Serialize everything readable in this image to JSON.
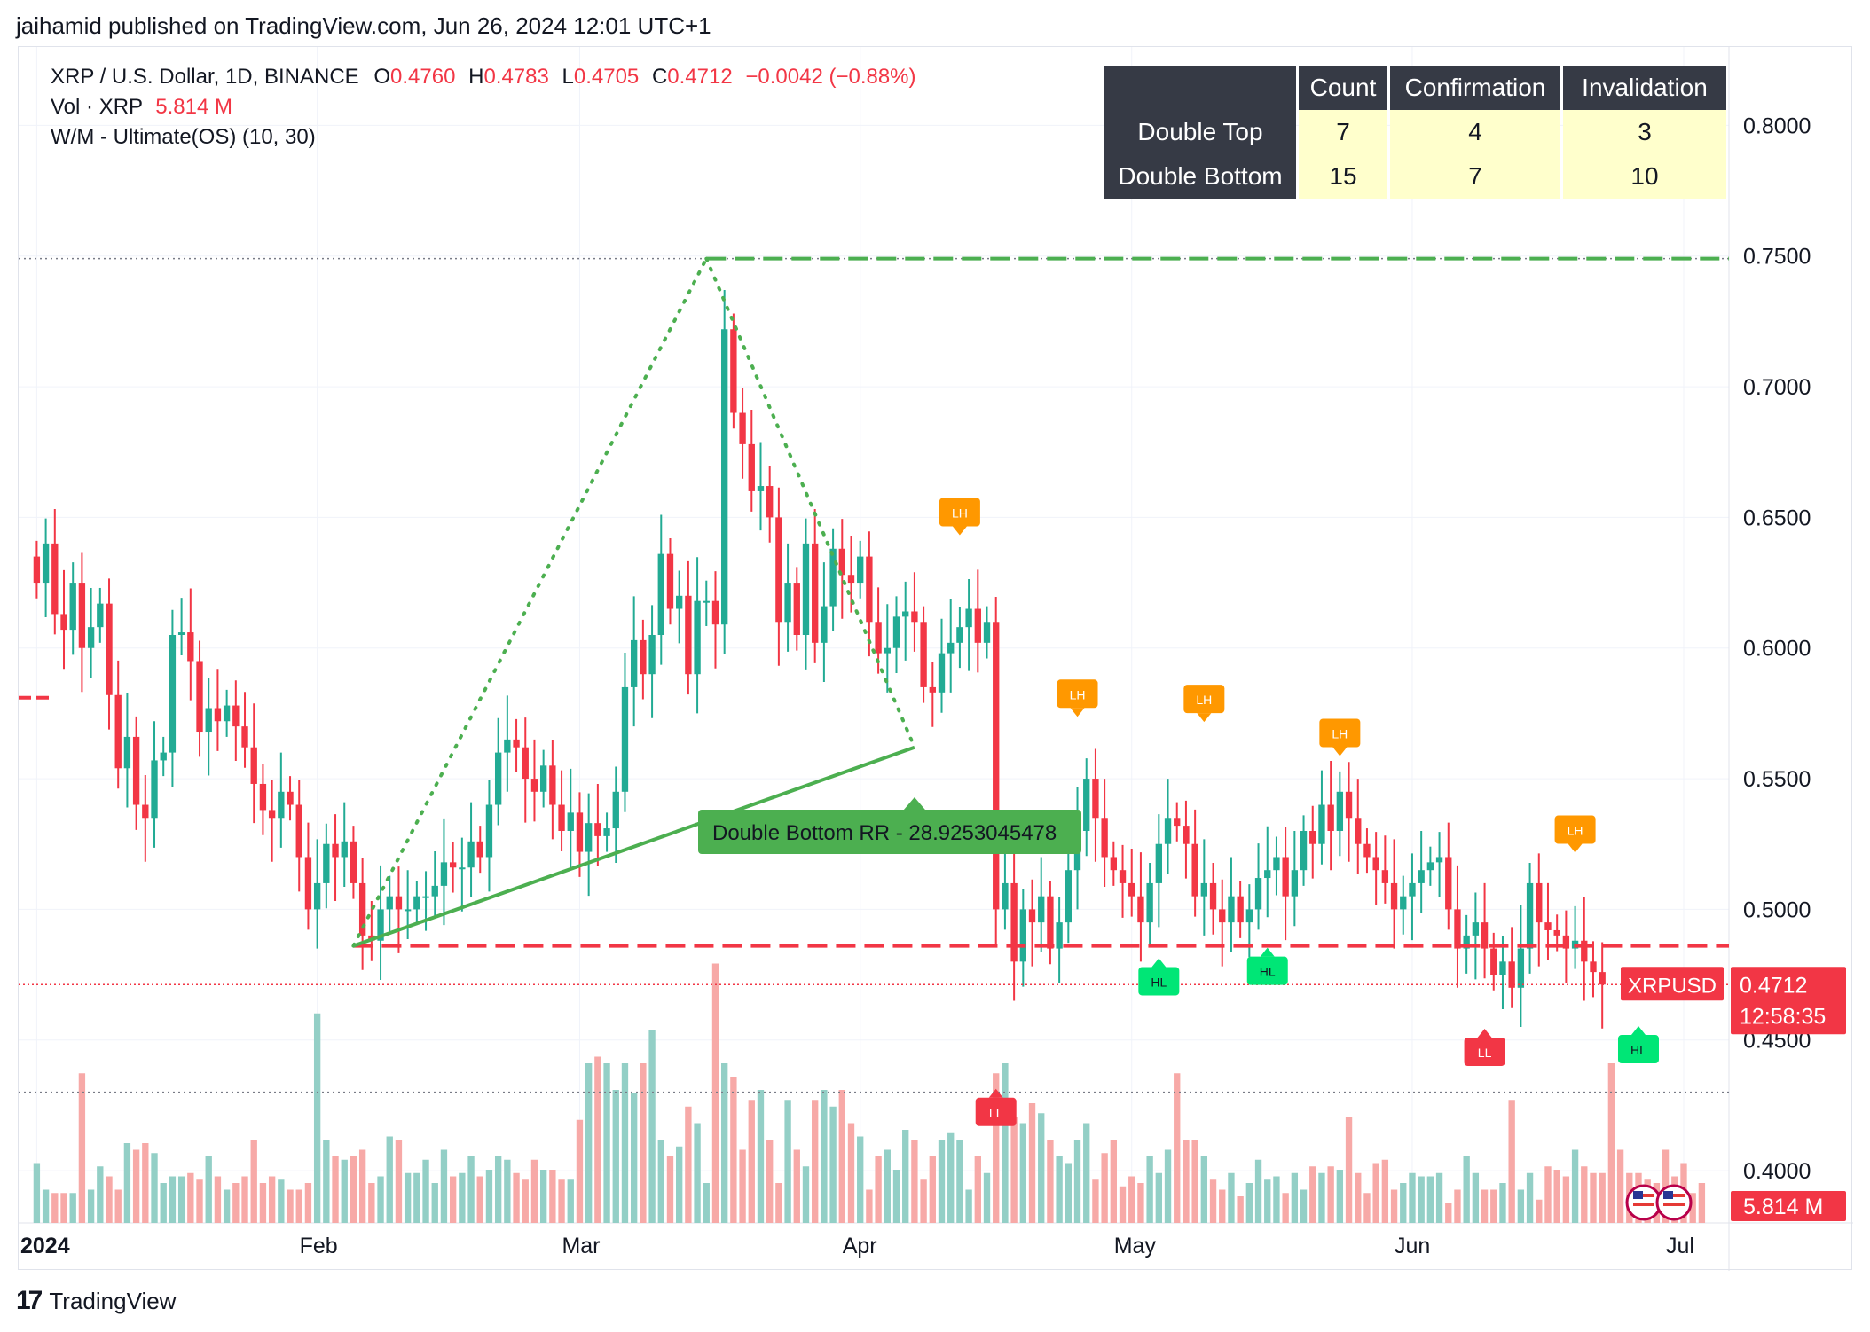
{
  "header": {
    "publisher": "jaihamid published on TradingView.com, Jun 26, 2024 12:01 UTC+1"
  },
  "legend": {
    "symbol": "XRP / U.S. Dollar, 1D, BINANCE",
    "o_label": "O",
    "o": "0.4760",
    "h_label": "H",
    "h": "0.4783",
    "l_label": "L",
    "l": "0.4705",
    "c_label": "C",
    "c": "0.4712",
    "change": "−0.0042 (−0.88%)",
    "vol_label": "Vol · XRP",
    "vol": "5.814 M",
    "indicator": "W/M - Ultimate(OS) (10, 30)"
  },
  "table": {
    "headers": [
      "",
      "Count",
      "Confirmation",
      "Invalidation"
    ],
    "rows": [
      {
        "name": "Double Top",
        "count": "7",
        "confirmation": "4",
        "invalidation": "3"
      },
      {
        "name": "Double Bottom",
        "count": "15",
        "confirmation": "7",
        "invalidation": "10"
      }
    ]
  },
  "price_badge": {
    "symbol": "XRPUSD",
    "price": "0.4712",
    "countdown": "12:58:35"
  },
  "volume_badge": "5.814 M",
  "pattern_label": "Double Bottom RR - 28.9253045478",
  "footer": {
    "brand": "TradingView",
    "mark": "17"
  },
  "colors": {
    "up": "#22ab94",
    "down": "#f23645",
    "vol_up": "#93cfc6",
    "vol_down": "#f7a9a7",
    "pattern_green": "#4caf50",
    "badge_red": "#f23645",
    "lh": "#ff9800",
    "hl": "#00e676",
    "ll": "#f23645"
  },
  "chart_data": {
    "type": "candlestick",
    "y_axis_labels": [
      "0.8000",
      "0.7500",
      "0.7000",
      "0.6500",
      "0.6000",
      "0.5500",
      "0.5000",
      "0.4500",
      "0.4000"
    ],
    "y_axis_values": [
      0.8,
      0.75,
      0.7,
      0.65,
      0.6,
      0.55,
      0.5,
      0.45,
      0.4
    ],
    "x_axis_labels": [
      "2024",
      "Feb",
      "Mar",
      "Apr",
      "May",
      "Jun",
      "Jul"
    ],
    "x_axis_days": [
      0,
      31,
      60,
      91,
      121,
      152,
      182
    ],
    "ylim": [
      0.38,
      0.83
    ],
    "xlim": [
      -2,
      187
    ],
    "levels": {
      "top": 0.749,
      "neckline": 0.486,
      "last": 0.4712,
      "low_dotted": 0.43
    },
    "pattern": {
      "bottom1_day": 35,
      "bottom1_price": 0.486,
      "peak_day": 74,
      "peak_price": 0.749,
      "bottom2_day": 97,
      "bottom2_price": 0.562
    },
    "markers": [
      {
        "day": 102,
        "price": 0.6425,
        "text": "LH",
        "kind": "lh"
      },
      {
        "day": 115,
        "price": 0.573,
        "text": "LH",
        "kind": "lh"
      },
      {
        "day": 129,
        "price": 0.571,
        "text": "LH",
        "kind": "lh"
      },
      {
        "day": 144,
        "price": 0.558,
        "text": "LH",
        "kind": "lh"
      },
      {
        "day": 170,
        "price": 0.521,
        "text": "LH",
        "kind": "lh"
      },
      {
        "day": 106,
        "price": 0.432,
        "text": "LL",
        "kind": "ll"
      },
      {
        "day": 160,
        "price": 0.455,
        "text": "LL",
        "kind": "ll"
      },
      {
        "day": 124,
        "price": 0.482,
        "text": "HL",
        "kind": "hl"
      },
      {
        "day": 136,
        "price": 0.486,
        "text": "HL",
        "kind": "hl"
      },
      {
        "day": 177,
        "price": 0.456,
        "text": "HL",
        "kind": "hl"
      }
    ],
    "closes": [
      0.625,
      0.64,
      0.613,
      0.607,
      0.625,
      0.6,
      0.608,
      0.617,
      0.582,
      0.554,
      0.566,
      0.54,
      0.535,
      0.557,
      0.56,
      0.605,
      0.606,
      0.595,
      0.568,
      0.577,
      0.572,
      0.578,
      0.57,
      0.562,
      0.548,
      0.538,
      0.535,
      0.545,
      0.54,
      0.52,
      0.5,
      0.51,
      0.525,
      0.52,
      0.526,
      0.51,
      0.49,
      0.488,
      0.5,
      0.505,
      0.5,
      0.5,
      0.505,
      0.505,
      0.509,
      0.518,
      0.516,
      0.516,
      0.526,
      0.52,
      0.54,
      0.56,
      0.565,
      0.562,
      0.55,
      0.545,
      0.555,
      0.54,
      0.53,
      0.537,
      0.522,
      0.533,
      0.528,
      0.531,
      0.545,
      0.585,
      0.603,
      0.59,
      0.605,
      0.636,
      0.615,
      0.62,
      0.59,
      0.618,
      0.618,
      0.609,
      0.722,
      0.69,
      0.678,
      0.66,
      0.662,
      0.65,
      0.61,
      0.625,
      0.605,
      0.64,
      0.602,
      0.616,
      0.638,
      0.628,
      0.625,
      0.635,
      0.61,
      0.598,
      0.6,
      0.612,
      0.614,
      0.61,
      0.585,
      0.583,
      0.598,
      0.602,
      0.608,
      0.615,
      0.602,
      0.61,
      0.5,
      0.51,
      0.48,
      0.5,
      0.495,
      0.505,
      0.485,
      0.495,
      0.515,
      0.53,
      0.55,
      0.535,
      0.52,
      0.515,
      0.51,
      0.505,
      0.495,
      0.51,
      0.525,
      0.535,
      0.532,
      0.525,
      0.505,
      0.51,
      0.5,
      0.495,
      0.505,
      0.495,
      0.5,
      0.512,
      0.515,
      0.52,
      0.505,
      0.515,
      0.53,
      0.525,
      0.54,
      0.53,
      0.545,
      0.535,
      0.525,
      0.52,
      0.515,
      0.51,
      0.5,
      0.505,
      0.51,
      0.515,
      0.518,
      0.52,
      0.5,
      0.485,
      0.49,
      0.495,
      0.485,
      0.475,
      0.48,
      0.47,
      0.485,
      0.51,
      0.495,
      0.492,
      0.49,
      0.485,
      0.488,
      0.48,
      0.476,
      0.4712
    ],
    "volumes": [
      18,
      10,
      9,
      9,
      9,
      45,
      10,
      17,
      14,
      10,
      24,
      22,
      24,
      21,
      12,
      14,
      14,
      15,
      13,
      20,
      14,
      10,
      12,
      14,
      25,
      12,
      14,
      13,
      10,
      10,
      12,
      63,
      25,
      20,
      19,
      20,
      22,
      12,
      14,
      26,
      25,
      15,
      15,
      19,
      12,
      22,
      14,
      15,
      20,
      14,
      16,
      20,
      19,
      15,
      13,
      19,
      16,
      16,
      13,
      13,
      31,
      48,
      50,
      48,
      40,
      48,
      39,
      48,
      58,
      25,
      20,
      23,
      35,
      30,
      12,
      78,
      48,
      44,
      22,
      37,
      40,
      25,
      12,
      37,
      22,
      17,
      37,
      40,
      35,
      40,
      30,
      26,
      10,
      20,
      22,
      16,
      28,
      25,
      13,
      20,
      25,
      27,
      25,
      10,
      20,
      15,
      45,
      48,
      32,
      30,
      36,
      33,
      25,
      20,
      18,
      25,
      30,
      13,
      21,
      25,
      11,
      14,
      12,
      20,
      15,
      22,
      45,
      25,
      25,
      20,
      13,
      10,
      15,
      8,
      12,
      19,
      13,
      14,
      9,
      15,
      10,
      17,
      15,
      17,
      16,
      32,
      15,
      9,
      18,
      19,
      10,
      12,
      15,
      14,
      14,
      15,
      6,
      10,
      20,
      15,
      10,
      10,
      12,
      37,
      10,
      15,
      7,
      17,
      16,
      14,
      22,
      17,
      15,
      15,
      48,
      22,
      15,
      15,
      13,
      12,
      22,
      14,
      18,
      9,
      12
    ]
  }
}
